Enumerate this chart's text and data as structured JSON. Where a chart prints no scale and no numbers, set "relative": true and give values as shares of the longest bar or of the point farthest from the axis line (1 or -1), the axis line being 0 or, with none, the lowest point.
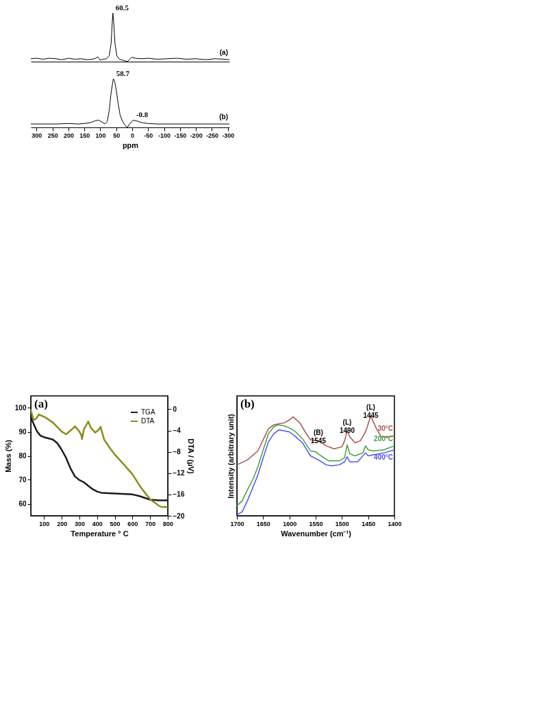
{
  "chart_data": [
    {
      "type": "line",
      "relative": true,
      "tick_labels": false,
      "xlim": [
        318,
        -305
      ],
      "series": [
        {
          "name": "(a)",
          "color": "#000000",
          "x": [
            318,
            300,
            280,
            260,
            240,
            220,
            200,
            180,
            160,
            140,
            125,
            115,
            108,
            100,
            92,
            80,
            72,
            66,
            63,
            60.5,
            58,
            54,
            48,
            40,
            30,
            20,
            15,
            8,
            2,
            -10,
            -30,
            -50,
            -80,
            -110,
            -140,
            -170,
            -200,
            -230,
            -260,
            -290,
            -305
          ],
          "values": [
            0.06,
            0.07,
            0.05,
            0.07,
            0.06,
            0.04,
            0.07,
            0.05,
            0.06,
            0.04,
            0.05,
            0.07,
            0.1,
            0.03,
            0.05,
            0.06,
            0.12,
            0.38,
            0.76,
            1.0,
            0.81,
            0.38,
            0.12,
            0.05,
            0.03,
            0.01,
            0.0,
            0.05,
            0.09,
            0.07,
            0.06,
            0.07,
            0.05,
            0.06,
            0.07,
            0.05,
            0.06,
            0.04,
            0.06,
            0.05,
            0.04
          ]
        }
      ],
      "annotations": [
        {
          "text": "60.5",
          "x": 60.5,
          "y": 1.0
        }
      ]
    },
    {
      "type": "line",
      "relative": true,
      "tick_labels": "x",
      "xlabel": "ppm",
      "xlim": [
        318,
        -305
      ],
      "xticks": [
        300,
        250,
        200,
        150,
        100,
        50,
        0,
        -50,
        -100,
        -150,
        -200,
        -250,
        -300
      ],
      "series": [
        {
          "name": "(b)",
          "color": "#000000",
          "x": [
            318,
            280,
            240,
            200,
            170,
            150,
            130,
            115,
            106,
            95,
            85,
            78,
            72,
            66,
            60,
            58.7,
            55,
            50,
            44,
            38,
            30,
            22,
            15,
            8,
            0,
            -4,
            -15,
            -30,
            -50,
            -80,
            -120,
            -160,
            -200,
            -250,
            -305
          ],
          "values": [
            0.07,
            0.07,
            0.07,
            0.08,
            0.07,
            0.08,
            0.1,
            0.14,
            0.15,
            0.11,
            0.07,
            0.12,
            0.35,
            0.72,
            0.97,
            1.0,
            0.95,
            0.77,
            0.49,
            0.26,
            0.12,
            0.04,
            0.0,
            0.07,
            0.13,
            0.15,
            0.13,
            0.1,
            0.08,
            0.07,
            0.07,
            0.07,
            0.07,
            0.07,
            0.07
          ]
        }
      ],
      "annotations": [
        {
          "text": "58.7",
          "x": 58.7,
          "y": 1.0
        },
        {
          "text": "-0.8",
          "x": -4,
          "y": 0.15
        }
      ]
    },
    {
      "type": "line",
      "xlabel": "Temperature ° C",
      "ylabel": "Mass (%)",
      "y2label": "DTA / (µV)",
      "xlim": [
        25,
        800
      ],
      "xticks": [
        100,
        200,
        300,
        400,
        500,
        600,
        700,
        800
      ],
      "ylim": [
        55,
        105
      ],
      "yticks": [
        60,
        70,
        80,
        90,
        100
      ],
      "y2lim": [
        -20,
        2.5
      ],
      "y2ticks": [
        0,
        -4,
        -8,
        -12,
        -16,
        -20
      ],
      "legend": "top right",
      "series": [
        {
          "name": "TGA",
          "color": "#1a1a1a",
          "x": [
            25,
            40,
            60,
            80,
            100,
            150,
            175,
            200,
            225,
            250,
            275,
            300,
            325,
            350,
            375,
            400,
            425,
            500,
            600,
            640,
            700,
            750,
            800
          ],
          "values": [
            96.4,
            93.5,
            90.2,
            88.4,
            87.8,
            86.8,
            85.3,
            82.5,
            79.1,
            74.7,
            71.4,
            69.9,
            69.0,
            67.5,
            66.1,
            65.1,
            64.6,
            64.3,
            63.9,
            63.2,
            61.7,
            61.4,
            61.4
          ]
        },
        {
          "name": "DTA",
          "color": "#8b8b1a",
          "axis": "y2",
          "x": [
            25,
            40,
            55,
            70,
            100,
            150,
            200,
            225,
            250,
            275,
            300,
            310,
            315,
            325,
            340,
            350,
            365,
            390,
            410,
            420,
            440,
            475,
            500,
            550,
            600,
            650,
            700,
            750,
            760,
            800
          ],
          "values": [
            -0.1,
            -2.0,
            -1.8,
            -1.0,
            -1.4,
            -2.5,
            -4.2,
            -4.7,
            -4.0,
            -3.2,
            -4.2,
            -4.8,
            -5.6,
            -3.8,
            -2.9,
            -2.3,
            -3.5,
            -4.4,
            -3.8,
            -3.3,
            -5.7,
            -7.4,
            -8.5,
            -10.3,
            -12.2,
            -14.8,
            -16.9,
            -18.1,
            -18.3,
            -18.4
          ]
        }
      ],
      "annotations": [
        "(a)"
      ]
    },
    {
      "type": "line",
      "relative": true,
      "tick_labels": "x",
      "xlabel": "Wavenumber (cm⁻¹)",
      "ylabel": "Intensity (arbitrary unit)",
      "xlim": [
        1700,
        1400
      ],
      "xticks": [
        1700,
        1650,
        1600,
        1550,
        1500,
        1450,
        1400
      ],
      "series": [
        {
          "name": "30°C",
          "color": "#b05050",
          "x": [
            1700,
            1680,
            1660,
            1650,
            1640,
            1630,
            1620,
            1610,
            1600,
            1593,
            1580,
            1570,
            1560,
            1545,
            1530,
            1515,
            1500,
            1495,
            1490,
            1485,
            1475,
            1465,
            1455,
            1445,
            1435,
            1425,
            1410,
            1400
          ],
          "values": [
            0.51,
            0.56,
            0.65,
            0.76,
            0.87,
            0.91,
            0.92,
            0.93,
            0.96,
            0.99,
            0.93,
            0.84,
            0.76,
            0.75,
            0.7,
            0.67,
            0.69,
            0.75,
            0.85,
            0.79,
            0.73,
            0.75,
            0.84,
            1.0,
            0.88,
            0.79,
            0.79,
            0.8
          ]
        },
        {
          "name": "200°C",
          "color": "#40a040",
          "x": [
            1700,
            1690,
            1680,
            1670,
            1660,
            1650,
            1640,
            1630,
            1622,
            1610,
            1600,
            1590,
            1575,
            1560,
            1550,
            1540,
            1525,
            1505,
            1495,
            1490,
            1485,
            1475,
            1460,
            1455,
            1450,
            1440,
            1420,
            1400
          ],
          "values": [
            0.1,
            0.15,
            0.26,
            0.36,
            0.49,
            0.66,
            0.82,
            0.89,
            0.91,
            0.9,
            0.88,
            0.85,
            0.77,
            0.65,
            0.64,
            0.6,
            0.55,
            0.55,
            0.58,
            0.71,
            0.62,
            0.6,
            0.63,
            0.7,
            0.66,
            0.65,
            0.66,
            0.7
          ]
        },
        {
          "name": "400°C",
          "color": "#5050f0",
          "x": [
            1700,
            1690,
            1680,
            1670,
            1660,
            1650,
            1640,
            1630,
            1620,
            1610,
            1600,
            1590,
            1575,
            1560,
            1545,
            1530,
            1520,
            1505,
            1495,
            1490,
            1485,
            1470,
            1455,
            1450,
            1440,
            1420,
            1400
          ],
          "values": [
            0.01,
            0.04,
            0.15,
            0.28,
            0.41,
            0.58,
            0.74,
            0.82,
            0.86,
            0.85,
            0.84,
            0.8,
            0.73,
            0.6,
            0.56,
            0.51,
            0.5,
            0.51,
            0.54,
            0.59,
            0.54,
            0.54,
            0.63,
            0.6,
            0.61,
            0.63,
            0.66
          ]
        }
      ],
      "annotations": [
        "(b)",
        {
          "text": "(B) 1545",
          "x": 1545,
          "y": 0.75
        },
        {
          "text": "(L) 1490",
          "x": 1490,
          "y": 0.85
        },
        {
          "text": "(L) 1445",
          "x": 1445,
          "y": 1.0
        }
      ]
    }
  ]
}
